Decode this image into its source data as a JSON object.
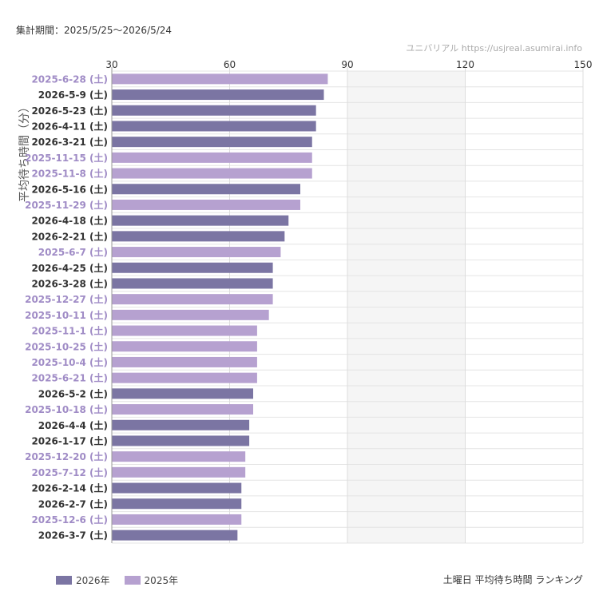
{
  "header": {
    "period": "集計期間：2025/5/25〜2026/5/24",
    "site": "ユニバリアル  https://usjreal.asumirai.info"
  },
  "footer": {
    "title": "土曜日 平均待ち時間 ランキング"
  },
  "colors": {
    "y2026": "#7b75a3",
    "y2025": "#b6a1d0",
    "band": "#f5f5f5",
    "grid": "#e4e4e4",
    "label2025": "#a08cc6",
    "label2026": "#333333"
  },
  "legend": [
    {
      "label": "2026年",
      "series": "2026"
    },
    {
      "label": "2025年",
      "series": "2025"
    }
  ],
  "chart_data": {
    "type": "bar",
    "orientation": "horizontal",
    "ylabel": "平均待ち時間（分）",
    "xlim": [
      30,
      150
    ],
    "xticks": [
      "30",
      "60",
      "90",
      "120",
      "150"
    ],
    "shaded_bands": [
      [
        90,
        120
      ]
    ],
    "categories": [
      "2025-6-28 (土)",
      "2026-5-9 (土)",
      "2026-5-23 (土)",
      "2026-4-11 (土)",
      "2026-3-21 (土)",
      "2025-11-15 (土)",
      "2025-11-8 (土)",
      "2026-5-16 (土)",
      "2025-11-29 (土)",
      "2026-4-18 (土)",
      "2026-2-21 (土)",
      "2025-6-7 (土)",
      "2026-4-25 (土)",
      "2026-3-28 (土)",
      "2025-12-27 (土)",
      "2025-10-11 (土)",
      "2025-11-1 (土)",
      "2025-10-25 (土)",
      "2025-10-4 (土)",
      "2025-6-21 (土)",
      "2026-5-2 (土)",
      "2025-10-18 (土)",
      "2026-4-4 (土)",
      "2026-1-17 (土)",
      "2025-12-20 (土)",
      "2025-7-12 (土)",
      "2026-2-14 (土)",
      "2026-2-7 (土)",
      "2025-12-6 (土)",
      "2026-3-7 (土)"
    ],
    "years": [
      "2025",
      "2026",
      "2026",
      "2026",
      "2026",
      "2025",
      "2025",
      "2026",
      "2025",
      "2026",
      "2026",
      "2025",
      "2026",
      "2026",
      "2025",
      "2025",
      "2025",
      "2025",
      "2025",
      "2025",
      "2026",
      "2025",
      "2026",
      "2026",
      "2025",
      "2025",
      "2026",
      "2026",
      "2025",
      "2026"
    ],
    "values": [
      85,
      84,
      82,
      82,
      81,
      81,
      81,
      78,
      78,
      75,
      74,
      73,
      71,
      71,
      71,
      70,
      67,
      67,
      67,
      67,
      66,
      66,
      65,
      65,
      64,
      64,
      63,
      63,
      63,
      62
    ]
  }
}
